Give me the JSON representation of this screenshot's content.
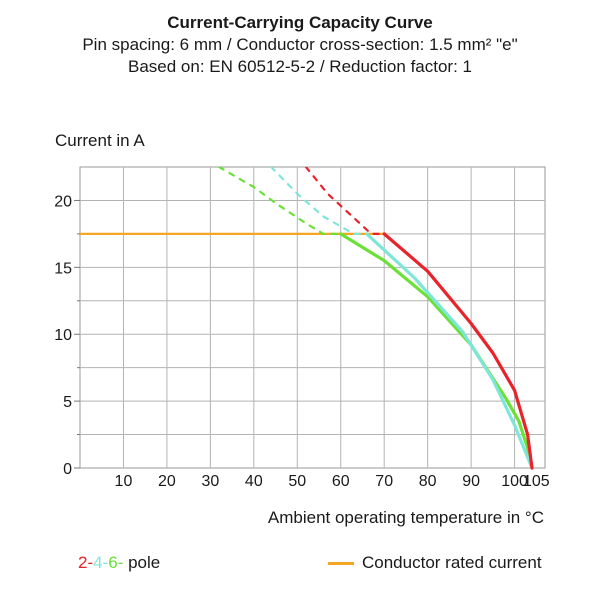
{
  "chart_data": {
    "type": "line",
    "title": "Current-Carrying Capacity Curve",
    "subtitle_lines": [
      "Pin spacing: 6 mm / Conductor cross-section: 1.5 mm² \"e\"",
      "Based on: EN 60512-5-2 / Reduction factor: 1"
    ],
    "ylabel": "Current in A",
    "xlabel": "Ambient operating temperature in °C",
    "xlim": [
      0,
      107
    ],
    "ylim": [
      0,
      22.5
    ],
    "x_ticks": [
      10,
      20,
      30,
      40,
      50,
      60,
      70,
      80,
      90,
      100,
      105
    ],
    "y_ticks": [
      0,
      5,
      10,
      15,
      20
    ],
    "rated_current": {
      "name": "Conductor rated current",
      "color": "#f5a623",
      "y": 17.5,
      "x_range": [
        0,
        70
      ]
    },
    "series": [
      {
        "name": "2-pole",
        "label": "2-",
        "color": "#e8232a",
        "dashed": [
          [
            52,
            22.5
          ],
          [
            57,
            20.5
          ],
          [
            62,
            19.0
          ],
          [
            67,
            17.5
          ],
          [
            70,
            17.5
          ]
        ],
        "solid": [
          [
            70,
            17.5
          ],
          [
            80,
            14.7
          ],
          [
            90,
            10.8
          ],
          [
            95,
            8.6
          ],
          [
            100,
            5.8
          ],
          [
            103,
            2.5
          ],
          [
            104,
            0
          ]
        ]
      },
      {
        "name": "4-pole",
        "label": "4-",
        "color": "#7ee6d8",
        "dashed": [
          [
            44,
            22.5
          ],
          [
            50,
            20.5
          ],
          [
            56,
            18.8
          ],
          [
            63,
            17.5
          ],
          [
            66,
            17.5
          ]
        ],
        "solid": [
          [
            66,
            17.5
          ],
          [
            77,
            14.2
          ],
          [
            88,
            10.2
          ],
          [
            95,
            6.6
          ],
          [
            100,
            3.2
          ],
          [
            104,
            0
          ]
        ]
      },
      {
        "name": "6-pole",
        "label": "6-",
        "color": "#6be036",
        "dashed": [
          [
            32,
            22.5
          ],
          [
            40,
            21.0
          ],
          [
            45,
            19.8
          ],
          [
            51,
            18.5
          ],
          [
            56,
            17.5
          ],
          [
            60,
            17.5
          ]
        ],
        "solid": [
          [
            60,
            17.5
          ],
          [
            70,
            15.5
          ],
          [
            80,
            12.8
          ],
          [
            90,
            9.2
          ],
          [
            98,
            5.2
          ],
          [
            101,
            3.5
          ],
          [
            103,
            1.5
          ],
          [
            104,
            0
          ]
        ]
      }
    ],
    "legend": {
      "pole_suffix": " pole",
      "rated": "Conductor rated current"
    }
  }
}
